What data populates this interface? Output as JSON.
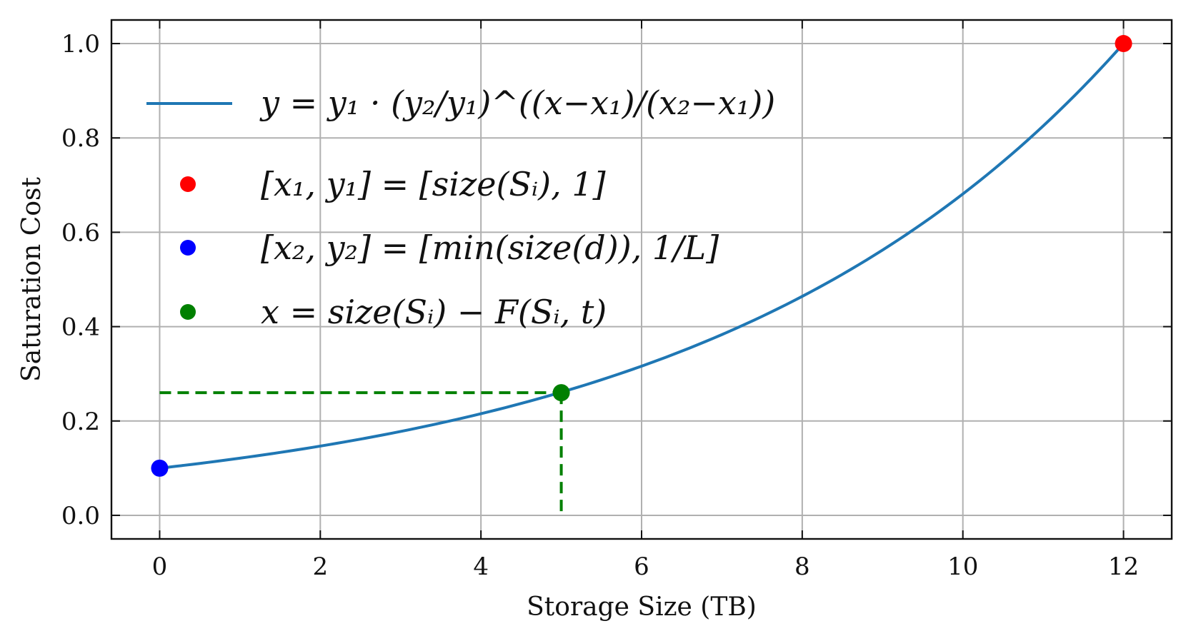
{
  "chart_data": {
    "type": "line",
    "xlabel": "Storage Size (TB)",
    "ylabel": "Saturation Cost",
    "xlim": [
      -0.6,
      12.6
    ],
    "ylim": [
      -0.05,
      1.05
    ],
    "x_ticks": [
      0,
      2,
      4,
      6,
      8,
      10,
      12
    ],
    "y_ticks": [
      0.0,
      0.2,
      0.4,
      0.6,
      0.8,
      1.0
    ],
    "x_tick_labels": [
      "0",
      "2",
      "4",
      "6",
      "8",
      "10",
      "12"
    ],
    "y_tick_labels": [
      "0.0",
      "0.2",
      "0.4",
      "0.6",
      "0.8",
      "1.0"
    ],
    "grid": true,
    "legend_position": "upper-left",
    "series": [
      {
        "kind": "line",
        "color": "#1f77b4",
        "legend": "y = y₁ · (y₂/y₁)^((x−x₁)/(x₂−x₁))",
        "formula": "exponential",
        "anchor_points": [
          [
            0,
            0.1
          ],
          [
            12,
            1.0
          ]
        ],
        "x_range": [
          0,
          12
        ]
      },
      {
        "kind": "point",
        "color": "#ff0000",
        "legend": "[x₁, y₁] = [size(Sᵢ), 1]",
        "x": 12,
        "y": 1.0
      },
      {
        "kind": "point",
        "color": "#0000ff",
        "legend": "[x₂, y₂] = [min(size(d)), 1/L]",
        "x": 0,
        "y": 0.1
      },
      {
        "kind": "point",
        "color": "#008000",
        "legend": "x = size(Sᵢ) − F(Sᵢ, t)",
        "x": 5,
        "y": 0.26
      }
    ],
    "reference_lines": [
      {
        "style": "dashed",
        "color": "#008000",
        "from": [
          0,
          0.26
        ],
        "to": [
          5,
          0.26
        ]
      },
      {
        "style": "dashed",
        "color": "#008000",
        "from": [
          5,
          0.26
        ],
        "to": [
          5,
          0.0
        ]
      }
    ]
  }
}
